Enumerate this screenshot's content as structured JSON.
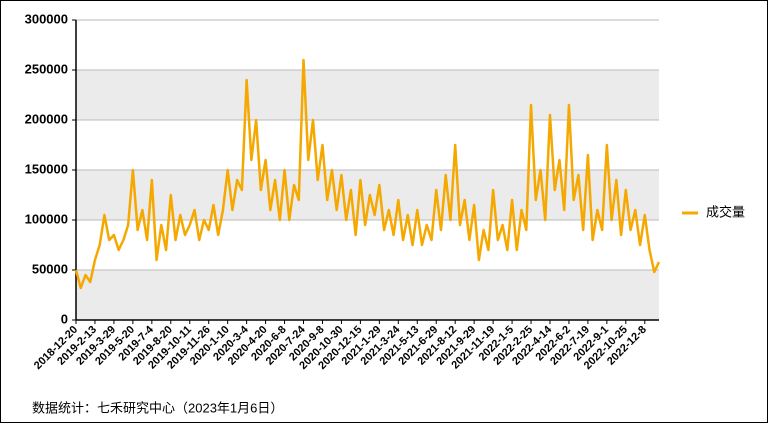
{
  "chart_data": {
    "type": "line",
    "categories": [
      "2018-12-20",
      null,
      null,
      null,
      "2019-2-13",
      null,
      null,
      null,
      "2019-3-29",
      null,
      null,
      null,
      "2019-5-20",
      null,
      null,
      null,
      "2019-7-4",
      null,
      null,
      null,
      "2019-8-20",
      null,
      null,
      null,
      "2019-10-11",
      null,
      null,
      null,
      "2019-11-26",
      null,
      null,
      null,
      "2020-1-10",
      null,
      null,
      null,
      "2020-3-4",
      null,
      null,
      null,
      "2020-4-20",
      null,
      null,
      null,
      "2020-6-8",
      null,
      null,
      null,
      "2020-7-24",
      null,
      null,
      null,
      "2020-9-8",
      null,
      null,
      null,
      "2020-10-30",
      null,
      null,
      null,
      "2020-12-15",
      null,
      null,
      null,
      "2021-1-29",
      null,
      null,
      null,
      "2021-3-24",
      null,
      null,
      null,
      "2021-5-13",
      null,
      null,
      null,
      "2021-6-29",
      null,
      null,
      null,
      "2021-8-12",
      null,
      null,
      null,
      "2021-9-29",
      null,
      null,
      null,
      "2021-11-19",
      null,
      null,
      null,
      "2022-1-5",
      null,
      null,
      null,
      "2022-2-25",
      null,
      null,
      null,
      "2022-4-14",
      null,
      null,
      null,
      "2022-6-2",
      null,
      null,
      null,
      "2022-7-19",
      null,
      null,
      null,
      "2022-9-1",
      null,
      null,
      null,
      "2022-10-25",
      null,
      null,
      null,
      "2022-12-8",
      null,
      null,
      null
    ],
    "series": [
      {
        "name": "成交量",
        "color": "#f5a800",
        "values": [
          50000,
          32000,
          45000,
          38000,
          60000,
          75000,
          105000,
          80000,
          85000,
          70000,
          80000,
          95000,
          150000,
          90000,
          110000,
          80000,
          140000,
          60000,
          95000,
          70000,
          125000,
          80000,
          105000,
          85000,
          95000,
          110000,
          80000,
          100000,
          90000,
          115000,
          85000,
          110000,
          150000,
          110000,
          140000,
          130000,
          240000,
          160000,
          200000,
          130000,
          160000,
          110000,
          140000,
          100000,
          150000,
          100000,
          135000,
          120000,
          260000,
          160000,
          200000,
          140000,
          175000,
          120000,
          150000,
          110000,
          145000,
          100000,
          130000,
          85000,
          140000,
          95000,
          125000,
          105000,
          135000,
          90000,
          110000,
          85000,
          120000,
          80000,
          105000,
          75000,
          110000,
          75000,
          95000,
          80000,
          130000,
          90000,
          145000,
          100000,
          175000,
          95000,
          120000,
          80000,
          115000,
          60000,
          90000,
          70000,
          130000,
          80000,
          95000,
          70000,
          120000,
          70000,
          110000,
          90000,
          215000,
          120000,
          150000,
          100000,
          205000,
          130000,
          160000,
          110000,
          215000,
          120000,
          145000,
          90000,
          165000,
          80000,
          110000,
          90000,
          175000,
          100000,
          140000,
          85000,
          130000,
          90000,
          110000,
          75000,
          105000,
          70000,
          48000,
          58000
        ]
      }
    ],
    "ylim": [
      0,
      300000
    ],
    "yticks": [
      0,
      50000,
      100000,
      150000,
      200000,
      250000,
      300000
    ],
    "grid": true,
    "legend": "right",
    "source": "数据统计：七禾研究中心（2023年1月6日）"
  }
}
